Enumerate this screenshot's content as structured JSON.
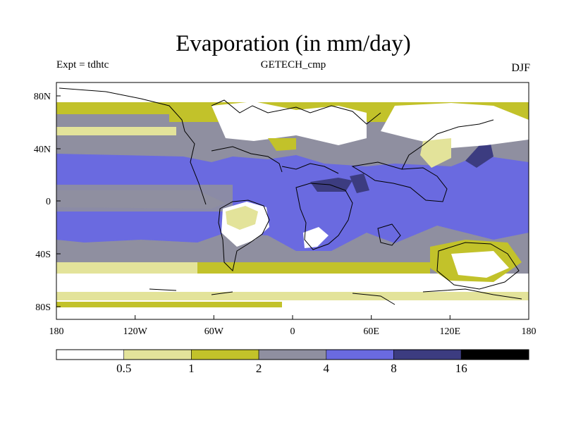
{
  "title": "Evaporation (in mm/day)",
  "subtitle_left": "Expt = tdhtc",
  "subtitle_center": "GETECH_cmp",
  "subtitle_right": "DJF",
  "x_ticks": [
    "180",
    "120W",
    "60W",
    "0",
    "60E",
    "120E",
    "180"
  ],
  "y_ticks": [
    "80N",
    "40N",
    "0",
    "40S",
    "80S"
  ],
  "colorbar": {
    "labels": [
      "0.5",
      "1",
      "2",
      "4",
      "8",
      "16"
    ],
    "colors": [
      "#ffffff",
      "#e3e39a",
      "#c2c22a",
      "#8f8fa0",
      "#6a6ae0",
      "#3c3c80",
      "#000000"
    ]
  }
}
